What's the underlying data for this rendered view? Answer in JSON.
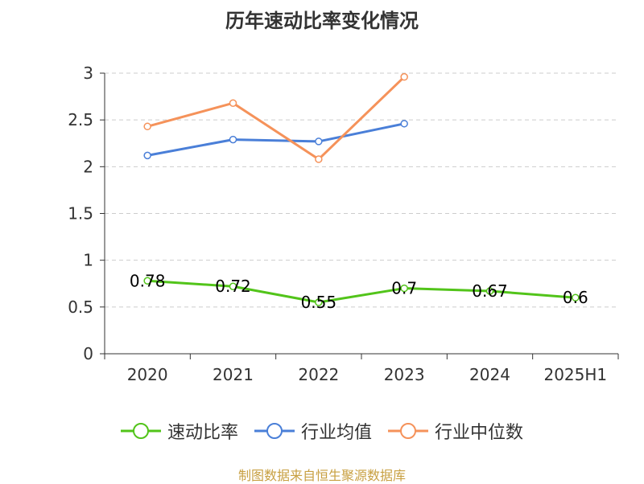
{
  "chart_data": {
    "type": "line",
    "title": "历年速动比率变化情况",
    "categories": [
      "2020",
      "2021",
      "2022",
      "2023",
      "2024",
      "2025H1"
    ],
    "ylim": [
      0,
      3
    ],
    "yticks": [
      "0",
      "0.5",
      "1",
      "1.5",
      "2",
      "2.5",
      "3"
    ],
    "grid": true,
    "legend_position": "bottom",
    "series": [
      {
        "name": "速动比率",
        "color": "#52c41a",
        "values": [
          0.78,
          0.72,
          0.55,
          0.7,
          0.67,
          0.6
        ],
        "labels": [
          "0.78",
          "0.72",
          "0.55",
          "0.7",
          "0.67",
          "0.6"
        ]
      },
      {
        "name": "行业均值",
        "color": "#4a7fd8",
        "values": [
          2.12,
          2.29,
          2.27,
          2.46,
          null,
          null
        ]
      },
      {
        "name": "行业中位数",
        "color": "#f5925a",
        "values": [
          2.43,
          2.68,
          2.08,
          2.96,
          null,
          null
        ]
      }
    ]
  },
  "footer": {
    "source": "制图数据来自恒生聚源数据库"
  }
}
